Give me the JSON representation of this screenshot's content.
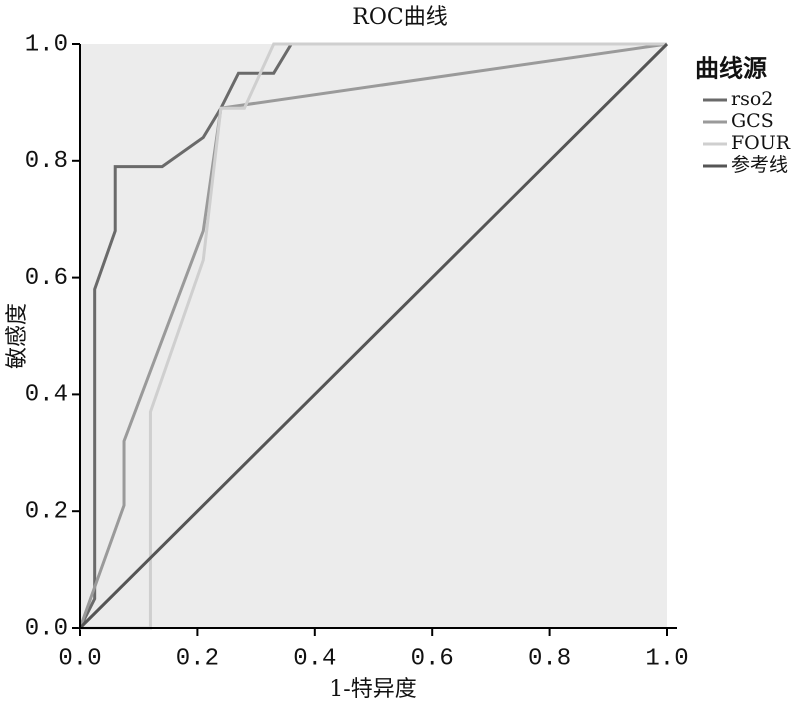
{
  "chart_data": {
    "type": "line",
    "title": "ROC曲线",
    "x_label": "1-特异度",
    "y_label": "敏感度",
    "legend_title": "曲线源",
    "legend": "right",
    "plot_background": "#ececec",
    "xlim": [
      0,
      1
    ],
    "ylim": [
      0,
      1
    ],
    "xticks": [
      {
        "value": 0,
        "label": "0.0"
      },
      0.2,
      0.4,
      0.6,
      0.8,
      {
        "value": 1,
        "label": "1.0"
      }
    ],
    "yticks": [
      {
        "value": 0,
        "label": "0.0"
      },
      0.2,
      0.4,
      0.6,
      0.8,
      {
        "value": 1,
        "label": "1.0"
      }
    ],
    "series": [
      {
        "name": "rso2",
        "color": "#6a6a6a",
        "x": [
          0,
          0.025,
          0.025,
          0.06,
          0.06,
          0.14,
          0.21,
          0.24,
          0.27,
          0.33,
          0.36,
          1
        ],
        "values": [
          0,
          0.05,
          0.58,
          0.68,
          0.79,
          0.79,
          0.84,
          0.89,
          0.95,
          0.95,
          1,
          1
        ]
      },
      {
        "name": "GCS",
        "color": "#9a9a9a",
        "x": [
          0,
          0.075,
          0.075,
          0.21,
          0.24,
          1
        ],
        "values": [
          0,
          0.21,
          0.32,
          0.68,
          0.89,
          1
        ]
      },
      {
        "name": "FOUR",
        "color": "#cfcfcf",
        "x": [
          0,
          0.12,
          0.12,
          0.21,
          0.24,
          0.28,
          0.33,
          1
        ],
        "values": [
          0,
          0,
          0.37,
          0.63,
          0.89,
          0.89,
          1,
          1
        ]
      },
      {
        "name": "参考线",
        "color": "#555555",
        "x": [
          0,
          1
        ],
        "values": [
          0,
          1
        ]
      }
    ]
  }
}
